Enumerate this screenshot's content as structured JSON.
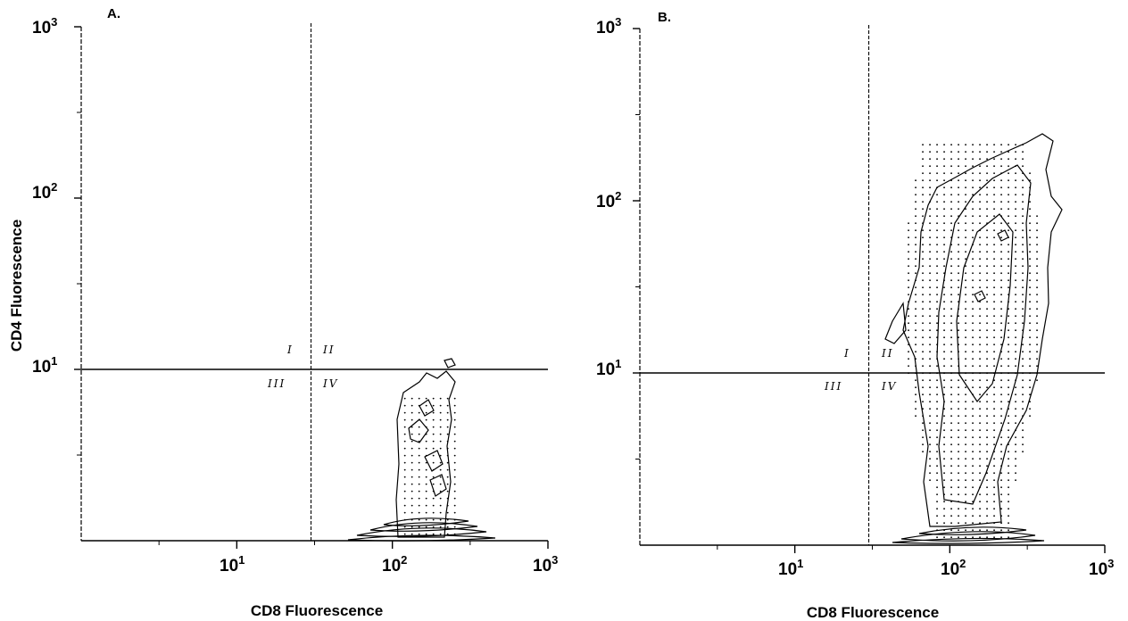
{
  "chart_data": [
    {
      "type": "contour",
      "panel_label": "A.",
      "xlabel": "CD8 Fluorescence",
      "ylabel": "CD4 Fluorescence",
      "x_scale": "log",
      "y_scale": "log",
      "xlim": [
        1,
        1000
      ],
      "ylim": [
        1,
        1000
      ],
      "x_ticks": [
        {
          "base": "10",
          "exp": "1",
          "value": 10
        },
        {
          "base": "10",
          "exp": "2",
          "value": 100
        },
        {
          "base": "10",
          "exp": "3",
          "value": 1000
        }
      ],
      "y_ticks": [
        {
          "base": "10",
          "exp": "1",
          "value": 10
        },
        {
          "base": "10",
          "exp": "2",
          "value": 100
        },
        {
          "base": "10",
          "exp": "3",
          "value": 1000
        }
      ],
      "quadrant_gate": {
        "x": 30,
        "y": 10
      },
      "quadrant_labels": [
        "I",
        "II",
        "III",
        "IV"
      ],
      "population": {
        "x_center": 180,
        "x_range": [
          100,
          300
        ],
        "y_range": [
          1,
          8
        ],
        "dense_core_y": 1.1
      },
      "grid": false,
      "legend": "none"
    },
    {
      "type": "contour",
      "panel_label": "B.",
      "xlabel": "CD8 Fluorescence",
      "ylabel": "",
      "x_scale": "log",
      "y_scale": "log",
      "xlim": [
        1,
        1000
      ],
      "ylim": [
        1,
        1000
      ],
      "x_ticks": [
        {
          "base": "10",
          "exp": "1",
          "value": 10
        },
        {
          "base": "10",
          "exp": "2",
          "value": 100
        },
        {
          "base": "10",
          "exp": "3",
          "value": 1000
        }
      ],
      "y_ticks": [
        {
          "base": "10",
          "exp": "1",
          "value": 10
        },
        {
          "base": "10",
          "exp": "2",
          "value": 100
        },
        {
          "base": "10",
          "exp": "3",
          "value": 1000
        }
      ],
      "quadrant_gate": {
        "x": 30,
        "y": 10
      },
      "quadrant_labels": [
        "I",
        "II",
        "III",
        "IV"
      ],
      "population": {
        "x_center": 130,
        "x_range": [
          50,
          400
        ],
        "y_range": [
          1,
          250
        ],
        "dense_core_y": 1.1
      },
      "grid": false,
      "legend": "none"
    }
  ]
}
